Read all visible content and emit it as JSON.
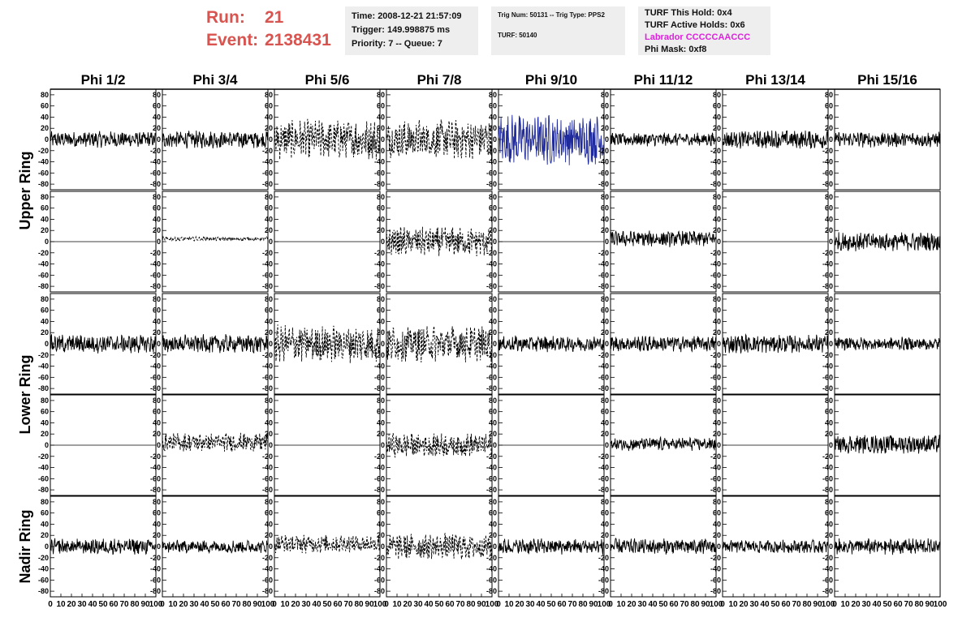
{
  "header": {
    "run_label": "Run:",
    "run_value": "21",
    "event_label": "Event:",
    "event_value": "2138431",
    "time": "Time: 2008-12-21 21:57:09",
    "trigger": "Trigger: 149.998875 ms",
    "priority": "Priority: 7 -- Queue: 7",
    "trig_num": "Trig Num: 50131 -- Trig Type: PPS2",
    "turf": "TURF: 50140",
    "turf_this_hold": "TURF This Hold: 0x4",
    "turf_active_holds": "TURF Active Holds: 0x6",
    "labrador": "Labrador CCCCCAACCC",
    "phi_mask": "Phi Mask: 0xf8"
  },
  "colors": {
    "run_text": "#d9534f",
    "labrador_text": "#e020e0",
    "trace_default": "#000000",
    "trace_highlight": "#1f2a9c"
  },
  "chart_data": {
    "type": "line",
    "description_columns": [
      "Phi 1/2",
      "Phi 3/4",
      "Phi 5/6",
      "Phi 7/8",
      "Phi 9/10",
      "Phi 11/12",
      "Phi 13/14",
      "Phi 15/16"
    ],
    "columns": [
      "Phi 1/2",
      "Phi 3/4",
      "Phi 5/6",
      "Phi 7/8",
      "Phi 9/10",
      "Phi 11/12",
      "Phi 13/14",
      "Phi 15/16"
    ],
    "ring_labels": [
      "Upper Ring",
      "Lower Ring",
      "Nadir Ring"
    ],
    "ylim": [
      -90,
      90
    ],
    "yticks": [
      80,
      60,
      40,
      20,
      0,
      -20,
      -40,
      -60,
      -80
    ],
    "xlim": [
      0,
      100
    ],
    "xtick_labels": [
      "0",
      "10",
      "20",
      "30",
      "40",
      "50",
      "60",
      "70",
      "80",
      "90",
      "100"
    ],
    "points_per_trace": 256,
    "panels": [
      [
        {
          "amp": 12,
          "style": "solid",
          "offset": 0
        },
        {
          "amp": 13,
          "style": "solid",
          "offset": 0
        },
        {
          "amp": 30,
          "style": "dashed",
          "offset": 0
        },
        {
          "amp": 30,
          "style": "dashed",
          "offset": 0
        },
        {
          "amp": 38,
          "style": "solid",
          "highlight": true,
          "offset": 0
        },
        {
          "amp": 10,
          "style": "solid",
          "offset": 0
        },
        {
          "amp": 14,
          "style": "solid",
          "offset": 0
        },
        {
          "amp": 12,
          "style": "solid",
          "offset": 0
        }
      ],
      [
        {
          "amp": 0,
          "style": "flat",
          "offset": 0
        },
        {
          "amp": 3,
          "style": "dashed",
          "offset": 5
        },
        {
          "amp": 0,
          "style": "flat",
          "offset": 0
        },
        {
          "amp": 22,
          "style": "dashed",
          "offset": 0
        },
        {
          "amp": 0,
          "style": "flat",
          "offset": 0
        },
        {
          "amp": 12,
          "style": "solid",
          "offset": 5
        },
        {
          "amp": 0,
          "style": "flat",
          "offset": 0
        },
        {
          "amp": 14,
          "style": "solid",
          "offset": 0
        }
      ],
      [
        {
          "amp": 14,
          "style": "solid",
          "offset": 0
        },
        {
          "amp": 14,
          "style": "solid",
          "offset": 0
        },
        {
          "amp": 28,
          "style": "dashed",
          "offset": 0
        },
        {
          "amp": 28,
          "style": "dashed",
          "offset": 0
        },
        {
          "amp": 12,
          "style": "solid",
          "offset": 0
        },
        {
          "amp": 12,
          "style": "solid",
          "offset": 0
        },
        {
          "amp": 14,
          "style": "solid",
          "offset": 0
        },
        {
          "amp": 10,
          "style": "solid",
          "offset": 0
        }
      ],
      [
        {
          "amp": 0,
          "style": "flat",
          "offset": 0
        },
        {
          "amp": 14,
          "style": "dashed",
          "offset": 5
        },
        {
          "amp": 0,
          "style": "flat",
          "offset": 0
        },
        {
          "amp": 18,
          "style": "dashed",
          "offset": 0
        },
        {
          "amp": 0,
          "style": "flat",
          "offset": 0
        },
        {
          "amp": 10,
          "style": "solid",
          "offset": 2
        },
        {
          "amp": 0,
          "style": "flat",
          "offset": 0
        },
        {
          "amp": 14,
          "style": "solid",
          "offset": 2
        }
      ],
      [
        {
          "amp": 12,
          "style": "solid",
          "offset": 0
        },
        {
          "amp": 10,
          "style": "solid",
          "offset": 0
        },
        {
          "amp": 14,
          "style": "dashed",
          "offset": 5
        },
        {
          "amp": 20,
          "style": "dashed",
          "offset": 0
        },
        {
          "amp": 12,
          "style": "solid",
          "offset": 0
        },
        {
          "amp": 12,
          "style": "solid",
          "offset": 0
        },
        {
          "amp": 10,
          "style": "solid",
          "offset": 0
        },
        {
          "amp": 12,
          "style": "solid",
          "offset": 0
        }
      ]
    ]
  }
}
